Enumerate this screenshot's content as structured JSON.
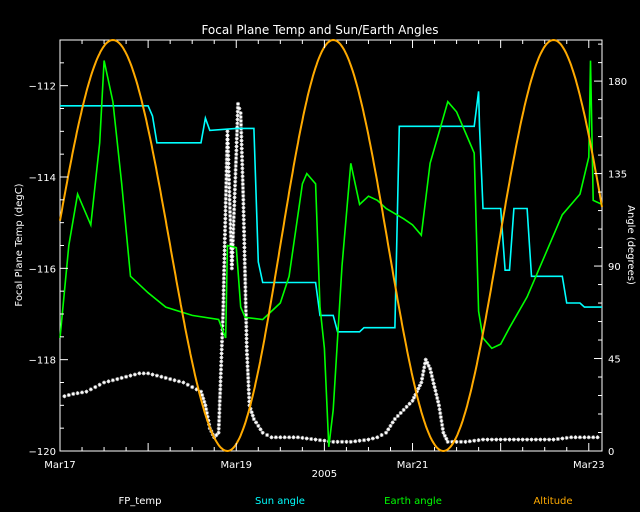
{
  "chart_data": {
    "type": "line",
    "title": "Focal Plane Temp and Sun/Earth Angles",
    "xlabel": "2005",
    "ylabel_left": "Focal Plane Temp (degC)",
    "ylabel_right": "Angle (degrees)",
    "x_unit": "days since Mar17 2005",
    "xlim": [
      0,
      6.15
    ],
    "ylim_left": [
      -120,
      -111
    ],
    "ylim_right": [
      0,
      200
    ],
    "x_ticks": [
      {
        "value": 0,
        "label": "Mar17"
      },
      {
        "value": 2,
        "label": "Mar19"
      },
      {
        "value": 3,
        "label": "2005"
      },
      {
        "value": 4,
        "label": "Mar21"
      },
      {
        "value": 6,
        "label": "Mar23"
      }
    ],
    "y_ticks_left": [
      -120,
      -118,
      -116,
      -114,
      -112
    ],
    "y_ticks_right": [
      0,
      45,
      90,
      135,
      180
    ],
    "legend": {
      "placement": "bottom",
      "entries": [
        {
          "name": "FP_temp",
          "color": "#ffffff"
        },
        {
          "name": "Sun angle",
          "color": "#00ffff"
        },
        {
          "name": "Earth angle",
          "color": "#00ff00"
        },
        {
          "name": "Altitude",
          "color": "#ffaa00"
        }
      ]
    },
    "series": [
      {
        "name": "FP_temp",
        "axis": "left",
        "style": "markers",
        "color": "#ffffff",
        "points": [
          [
            0.05,
            -118.8
          ],
          [
            0.15,
            -118.75
          ],
          [
            0.3,
            -118.7
          ],
          [
            0.4,
            -118.6
          ],
          [
            0.5,
            -118.5
          ],
          [
            0.6,
            -118.45
          ],
          [
            0.7,
            -118.4
          ],
          [
            0.8,
            -118.35
          ],
          [
            0.9,
            -118.3
          ],
          [
            1.0,
            -118.3
          ],
          [
            1.1,
            -118.35
          ],
          [
            1.2,
            -118.4
          ],
          [
            1.3,
            -118.45
          ],
          [
            1.4,
            -118.5
          ],
          [
            1.5,
            -118.6
          ],
          [
            1.6,
            -118.7
          ],
          [
            1.65,
            -119.0
          ],
          [
            1.7,
            -119.5
          ],
          [
            1.75,
            -119.7
          ],
          [
            1.8,
            -119.6
          ],
          [
            1.85,
            -117.0
          ],
          [
            1.9,
            -113.0
          ],
          [
            1.95,
            -116.0
          ],
          [
            2.0,
            -113.5
          ],
          [
            2.02,
            -112.4
          ],
          [
            2.05,
            -112.6
          ],
          [
            2.08,
            -114.5
          ],
          [
            2.12,
            -117.8
          ],
          [
            2.15,
            -119.0
          ],
          [
            2.2,
            -119.3
          ],
          [
            2.3,
            -119.6
          ],
          [
            2.4,
            -119.7
          ],
          [
            2.5,
            -119.7
          ],
          [
            2.7,
            -119.7
          ],
          [
            2.9,
            -119.75
          ],
          [
            3.1,
            -119.8
          ],
          [
            3.3,
            -119.8
          ],
          [
            3.5,
            -119.75
          ],
          [
            3.6,
            -119.7
          ],
          [
            3.7,
            -119.6
          ],
          [
            3.8,
            -119.3
          ],
          [
            3.9,
            -119.1
          ],
          [
            4.0,
            -118.9
          ],
          [
            4.05,
            -118.7
          ],
          [
            4.1,
            -118.5
          ],
          [
            4.15,
            -118.0
          ],
          [
            4.2,
            -118.2
          ],
          [
            4.25,
            -118.6
          ],
          [
            4.3,
            -119.0
          ],
          [
            4.35,
            -119.6
          ],
          [
            4.4,
            -119.8
          ],
          [
            4.6,
            -119.8
          ],
          [
            4.8,
            -119.75
          ],
          [
            5.0,
            -119.75
          ],
          [
            5.2,
            -119.75
          ],
          [
            5.4,
            -119.75
          ],
          [
            5.6,
            -119.75
          ],
          [
            5.8,
            -119.7
          ],
          [
            6.0,
            -119.7
          ],
          [
            6.15,
            -119.7
          ]
        ]
      },
      {
        "name": "Sun angle",
        "axis": "right",
        "style": "line",
        "color": "#00ffff",
        "points": [
          [
            0.0,
            168
          ],
          [
            0.5,
            168
          ],
          [
            1.0,
            168
          ],
          [
            1.05,
            163
          ],
          [
            1.1,
            150
          ],
          [
            1.5,
            150
          ],
          [
            1.6,
            150
          ],
          [
            1.65,
            162
          ],
          [
            1.7,
            156
          ],
          [
            2.0,
            157
          ],
          [
            2.2,
            157
          ],
          [
            2.25,
            92
          ],
          [
            2.3,
            82
          ],
          [
            2.8,
            82
          ],
          [
            2.9,
            82
          ],
          [
            2.95,
            66
          ],
          [
            3.1,
            66
          ],
          [
            3.15,
            58
          ],
          [
            3.4,
            58
          ],
          [
            3.45,
            60
          ],
          [
            3.8,
            60
          ],
          [
            3.85,
            158
          ],
          [
            4.3,
            158
          ],
          [
            4.35,
            158
          ],
          [
            4.7,
            158
          ],
          [
            4.75,
            175
          ],
          [
            4.76,
            158
          ],
          [
            4.8,
            118
          ],
          [
            5.0,
            118
          ],
          [
            5.05,
            88
          ],
          [
            5.1,
            88
          ],
          [
            5.15,
            118
          ],
          [
            5.3,
            118
          ],
          [
            5.35,
            85
          ],
          [
            5.7,
            85
          ],
          [
            5.75,
            72
          ],
          [
            5.9,
            72
          ],
          [
            5.95,
            70
          ],
          [
            6.15,
            70
          ]
        ]
      },
      {
        "name": "Earth angle",
        "axis": "right",
        "style": "line",
        "color": "#00ff00",
        "points": [
          [
            0.0,
            55
          ],
          [
            0.1,
            100
          ],
          [
            0.2,
            125
          ],
          [
            0.35,
            110
          ],
          [
            0.45,
            150
          ],
          [
            0.5,
            190
          ],
          [
            0.6,
            170
          ],
          [
            0.7,
            130
          ],
          [
            0.8,
            85
          ],
          [
            1.0,
            77
          ],
          [
            1.2,
            70
          ],
          [
            1.5,
            66
          ],
          [
            1.8,
            64
          ],
          [
            1.88,
            55
          ],
          [
            1.9,
            100
          ],
          [
            2.0,
            99
          ],
          [
            2.05,
            70
          ],
          [
            2.1,
            65
          ],
          [
            2.3,
            64
          ],
          [
            2.5,
            72
          ],
          [
            2.6,
            85
          ],
          [
            2.75,
            130
          ],
          [
            2.8,
            135
          ],
          [
            2.9,
            130
          ],
          [
            2.95,
            70
          ],
          [
            3.0,
            50
          ],
          [
            3.05,
            2
          ],
          [
            3.1,
            20
          ],
          [
            3.2,
            90
          ],
          [
            3.3,
            140
          ],
          [
            3.4,
            120
          ],
          [
            3.5,
            124
          ],
          [
            3.6,
            122
          ],
          [
            3.7,
            118
          ],
          [
            3.9,
            113
          ],
          [
            4.0,
            110
          ],
          [
            4.1,
            105
          ],
          [
            4.2,
            140
          ],
          [
            4.3,
            155
          ],
          [
            4.4,
            170
          ],
          [
            4.5,
            165
          ],
          [
            4.6,
            155
          ],
          [
            4.7,
            145
          ],
          [
            4.75,
            68
          ],
          [
            4.8,
            55
          ],
          [
            4.9,
            50
          ],
          [
            5.0,
            52
          ],
          [
            5.1,
            60
          ],
          [
            5.3,
            75
          ],
          [
            5.5,
            95
          ],
          [
            5.7,
            115
          ],
          [
            5.9,
            125
          ],
          [
            6.0,
            143
          ],
          [
            6.02,
            190
          ],
          [
            6.05,
            122
          ],
          [
            6.15,
            120
          ]
        ]
      },
      {
        "name": "Altitude",
        "axis": "right",
        "style": "line",
        "color": "#ffaa00",
        "curve": "sinusoid",
        "peaks": [
          0.6,
          3.1,
          5.6
        ],
        "troughs": [
          1.9,
          4.35
        ],
        "min": 0,
        "max": 200
      }
    ]
  }
}
